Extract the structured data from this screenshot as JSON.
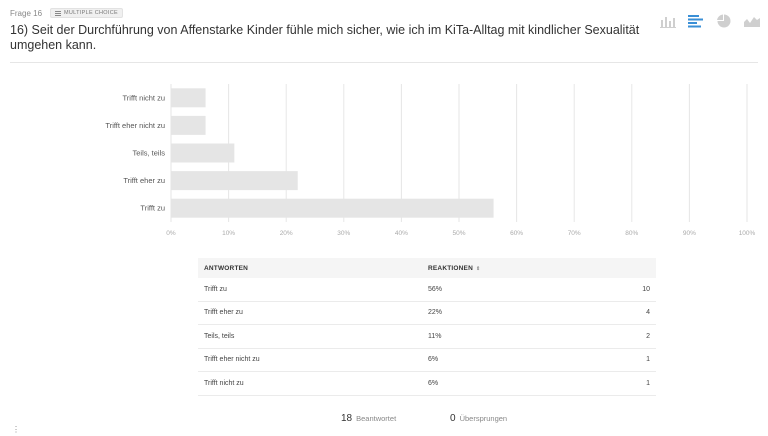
{
  "header": {
    "frage_label": "Frage 16",
    "badge_label": "MULTIPLE CHOICE",
    "question": "16) Seit der Durchführung von Affenstarke Kinder fühle mich sicher, wie ich im KiTa-Alltag mit kindlicher Sexualität umgehen kann."
  },
  "chart_icons": [
    {
      "name": "column-chart-icon",
      "active": false
    },
    {
      "name": "bar-chart-icon",
      "active": true
    },
    {
      "name": "pie-chart-icon",
      "active": false
    },
    {
      "name": "area-chart-icon",
      "active": false
    }
  ],
  "colors": {
    "bar": "#e5e5e5",
    "grid": "#e6e6e6",
    "accent": "#3a8fd6",
    "icon_inactive": "#cfcfcf"
  },
  "chart_data": {
    "type": "bar",
    "orientation": "horizontal",
    "categories": [
      "Trifft nicht zu",
      "Trifft eher nicht zu",
      "Teils, teils",
      "Trifft eher zu",
      "Trifft zu"
    ],
    "values": [
      6,
      6,
      11,
      22,
      56
    ],
    "xlim": [
      0,
      100
    ],
    "xticks": [
      "0%",
      "10%",
      "20%",
      "30%",
      "40%",
      "50%",
      "60%",
      "70%",
      "80%",
      "90%",
      "100%"
    ],
    "grid": true
  },
  "table": {
    "headers": {
      "answers": "ANTWORTEN",
      "reactions": "REAKTIONEN",
      "sort_symbol": "⇕"
    },
    "rows": [
      {
        "answer": "Trifft zu",
        "percent": "56%",
        "count": "10"
      },
      {
        "answer": "Trifft eher zu",
        "percent": "22%",
        "count": "4"
      },
      {
        "answer": "Teils, teils",
        "percent": "11%",
        "count": "2"
      },
      {
        "answer": "Trifft eher nicht zu",
        "percent": "6%",
        "count": "1"
      },
      {
        "answer": "Trifft nicht zu",
        "percent": "6%",
        "count": "1"
      }
    ]
  },
  "footer": {
    "answered_count": "18",
    "answered_label": "Beantwortet",
    "skipped_count": "0",
    "skipped_label": "Übersprungen"
  }
}
